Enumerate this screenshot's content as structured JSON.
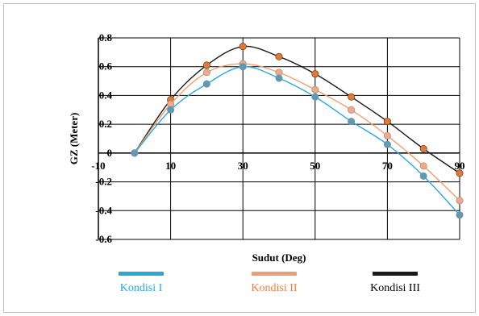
{
  "chart_data": {
    "type": "line",
    "title": "",
    "xlabel": "Sudut (Deg)",
    "ylabel": "GZ (Meter)",
    "xlim": [
      -10,
      90
    ],
    "ylim": [
      -0.6,
      0.8
    ],
    "x_ticks": [
      -10,
      10,
      30,
      50,
      70,
      90
    ],
    "x_tick_labels": [
      "-10",
      "10",
      "30",
      "50",
      "70",
      "90"
    ],
    "y_ticks": [
      -0.6,
      -0.4,
      -0.2,
      0,
      0.2,
      0.4,
      0.6,
      0.8
    ],
    "y_tick_labels": [
      "-0.6",
      "-0.4",
      "-0.2",
      "0",
      "0.2",
      "0.4",
      "0.6",
      "0.8"
    ],
    "grid": true,
    "legend_position": "bottom",
    "x": [
      0,
      10,
      20,
      30,
      40,
      50,
      60,
      70,
      80,
      90
    ],
    "series": [
      {
        "name": "Kondisi I",
        "line_color": "#29a8e0",
        "marker_color": "#5a9bb8",
        "label_color": "#29a8e0",
        "values": [
          0,
          0.3,
          0.48,
          0.6,
          0.52,
          0.39,
          0.22,
          0.06,
          -0.16,
          -0.43
        ]
      },
      {
        "name": "Kondisi II",
        "line_color": "#f0a070",
        "marker_color": "#f2a88a",
        "label_color": "#f0803c",
        "values": [
          0,
          0.34,
          0.56,
          0.62,
          0.56,
          0.44,
          0.3,
          0.12,
          -0.09,
          -0.33
        ]
      },
      {
        "name": "Kondisi III",
        "line_color": "#1a1a1a",
        "marker_color": "#e07b36",
        "label_color": "#000000",
        "values": [
          0,
          0.37,
          0.61,
          0.74,
          0.67,
          0.55,
          0.39,
          0.22,
          0.03,
          -0.14
        ]
      }
    ]
  }
}
